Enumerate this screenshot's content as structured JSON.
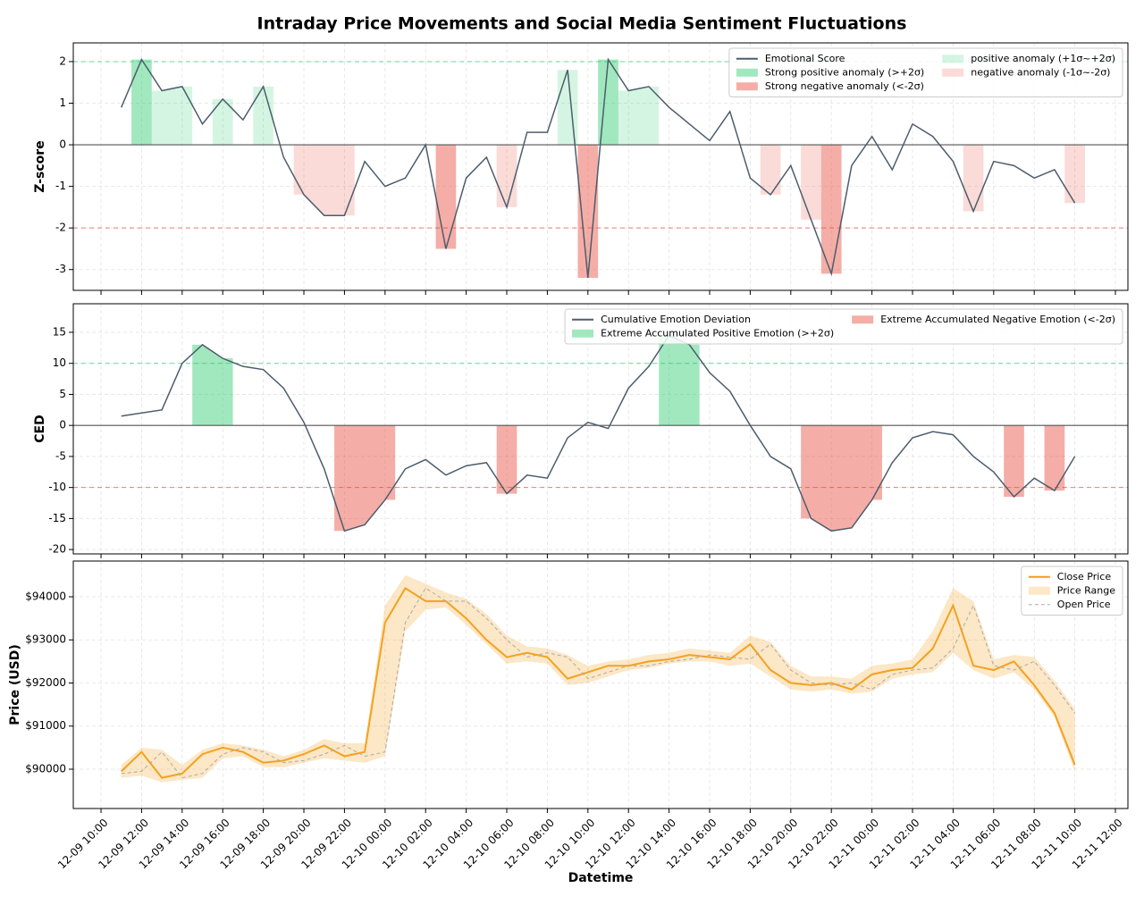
{
  "title": "Intraday Price Movements and Social Media Sentiment Fluctuations",
  "xlabel": "Datetime",
  "xlim": [
    "12-09 08:38",
    "12-11 12:37"
  ],
  "xticks": [
    "12-09 10:00",
    "12-09 12:00",
    "12-09 14:00",
    "12-09 16:00",
    "12-09 18:00",
    "12-09 20:00",
    "12-09 22:00",
    "12-10 00:00",
    "12-10 02:00",
    "12-10 04:00",
    "12-10 06:00",
    "12-10 08:00",
    "12-10 10:00",
    "12-10 12:00",
    "12-10 14:00",
    "12-10 16:00",
    "12-10 18:00",
    "12-10 20:00",
    "12-10 22:00",
    "12-11 00:00",
    "12-11 02:00",
    "12-11 04:00",
    "12-11 06:00",
    "12-11 08:00",
    "12-11 10:00",
    "12-11 12:00"
  ],
  "x": [
    "12-09 11:00",
    "12-09 12:00",
    "12-09 13:00",
    "12-09 14:00",
    "12-09 15:00",
    "12-09 16:00",
    "12-09 17:00",
    "12-09 18:00",
    "12-09 19:00",
    "12-09 20:00",
    "12-09 21:00",
    "12-09 22:00",
    "12-09 23:00",
    "12-10 00:00",
    "12-10 01:00",
    "12-10 02:00",
    "12-10 03:00",
    "12-10 04:00",
    "12-10 05:00",
    "12-10 06:00",
    "12-10 07:00",
    "12-10 08:00",
    "12-10 09:00",
    "12-10 10:00",
    "12-10 11:00",
    "12-10 12:00",
    "12-10 13:00",
    "12-10 14:00",
    "12-10 15:00",
    "12-10 16:00",
    "12-10 17:00",
    "12-10 18:00",
    "12-10 19:00",
    "12-10 20:00",
    "12-10 21:00",
    "12-10 22:00",
    "12-10 23:00",
    "12-11 00:00",
    "12-11 01:00",
    "12-11 02:00",
    "12-11 03:00",
    "12-11 04:00",
    "12-11 05:00",
    "12-11 06:00",
    "12-11 07:00",
    "12-11 08:00",
    "12-11 09:00",
    "12-11 10:00"
  ],
  "chart_data": [
    {
      "type": "line",
      "ylabel": "Z-score",
      "ylim": [
        -3.5,
        2.45
      ],
      "yticks": [
        -3,
        -2,
        -1,
        0,
        1,
        2
      ],
      "grid": true,
      "legend": "upper right",
      "legend_cols": 2,
      "series": [
        {
          "name": "Emotional Score",
          "color": "#4d5d6d",
          "values": [
            0.9,
            2.05,
            1.3,
            1.4,
            0.5,
            1.1,
            0.6,
            1.4,
            -0.3,
            -1.2,
            -1.7,
            -1.7,
            -0.4,
            -1.0,
            -0.8,
            0.0,
            -2.5,
            -0.8,
            -0.3,
            -1.5,
            0.3,
            0.3,
            1.8,
            -3.2,
            2.05,
            1.3,
            1.4,
            0.9,
            0.5,
            0.1,
            0.8,
            -0.8,
            -1.2,
            -0.5,
            -1.8,
            -3.1,
            -0.5,
            0.2,
            -0.6,
            0.5,
            0.2,
            -0.4,
            -1.6,
            -0.4,
            -0.5,
            -0.8,
            -0.6,
            -1.4
          ]
        }
      ],
      "fills": [
        {
          "name": "Strong positive anomaly (>+2σ)",
          "color": "#2ecc71",
          "opacity": 0.45,
          "above": 2
        },
        {
          "name": "Strong negative anomaly (<-2σ)",
          "color": "#e74c3c",
          "opacity": 0.45,
          "below": -2
        },
        {
          "name": "positive anomaly (+1σ~+2σ)",
          "color": "#2ecc71",
          "opacity": 0.2,
          "above": 1,
          "below": 2
        },
        {
          "name": "negative anomaly (-1σ~-2σ)",
          "color": "#e74c3c",
          "opacity": 0.2,
          "below": -1,
          "above": -2
        }
      ],
      "ref_lines": [
        {
          "value": 2,
          "color": "#2ecc71"
        },
        {
          "value": -2,
          "color": "#e74c3c"
        }
      ]
    },
    {
      "type": "line",
      "ylabel": "CED",
      "ylim": [
        -20.7,
        19.6
      ],
      "yticks": [
        -20,
        -15,
        -10,
        -5,
        0,
        5,
        10,
        15
      ],
      "grid": true,
      "legend": "upper right",
      "legend_cols": 2,
      "series": [
        {
          "name": "Cumulative Emotion Deviation",
          "color": "#4d5d6d",
          "values": [
            1.5,
            2,
            2.5,
            10,
            13,
            10.8,
            9.5,
            9,
            6,
            0.5,
            -7,
            -17,
            -16,
            -12,
            -7,
            -5.5,
            -8,
            -6.5,
            -6,
            -11,
            -8,
            -8.5,
            -2,
            0.5,
            -0.5,
            6,
            9.5,
            14.5,
            13,
            8.5,
            5.5,
            0,
            -5,
            -7,
            -15,
            -17,
            -16.5,
            -12,
            -6,
            -2,
            -1,
            -1.5,
            -5,
            -7.5,
            -11.5,
            -8.5,
            -10.5,
            -5
          ]
        }
      ],
      "fills": [
        {
          "name": "Extreme Accumulated Positive Emotion (>+2σ)",
          "color": "#2ecc71",
          "opacity": 0.45,
          "above": 10
        },
        {
          "name": "Extreme Accumulated Negative Emotion (<-2σ)",
          "color": "#e74c3c",
          "opacity": 0.45,
          "below": -10
        }
      ],
      "ref_lines": [
        {
          "value": 10,
          "color": "#2ecc71"
        },
        {
          "value": -10,
          "color": "#e74c3c"
        }
      ]
    },
    {
      "type": "line",
      "ylabel": "Price (USD)",
      "ylim": [
        89088,
        94829
      ],
      "yticks": [
        {
          "value": 90000,
          "label": "$90000"
        },
        {
          "value": 91000,
          "label": "$91000"
        },
        {
          "value": 92000,
          "label": "$92000"
        },
        {
          "value": 93000,
          "label": "$93000"
        },
        {
          "value": 94000,
          "label": "$94000"
        }
      ],
      "grid": true,
      "legend": "upper right",
      "legend_cols": 1,
      "series": [
        {
          "name": "Close Price",
          "color": "#f39c12",
          "values": [
            89950,
            90400,
            89800,
            89900,
            90350,
            90500,
            90400,
            90150,
            90200,
            90350,
            90550,
            90300,
            90400,
            93400,
            94200,
            93900,
            93900,
            93500,
            93000,
            92600,
            92700,
            92600,
            92100,
            92250,
            92400,
            92400,
            92500,
            92550,
            92650,
            92600,
            92550,
            92900,
            92300,
            92000,
            91950,
            92000,
            91850,
            92200,
            92300,
            92350,
            92800,
            93800,
            92400,
            92300,
            92500,
            91950,
            91300,
            90100
          ]
        },
        {
          "name": "Price Range",
          "kind": "band",
          "color": "#f5b041",
          "opacity": 0.3,
          "high": [
            90100,
            90500,
            90450,
            90100,
            90450,
            90600,
            90550,
            90450,
            90300,
            90450,
            90700,
            90600,
            90600,
            93800,
            94500,
            94300,
            94100,
            93950,
            93600,
            93100,
            92850,
            92800,
            92650,
            92400,
            92500,
            92550,
            92650,
            92700,
            92800,
            92750,
            92700,
            93100,
            92950,
            92400,
            92150,
            92150,
            92100,
            92400,
            92450,
            92550,
            93200,
            94200,
            93900,
            92550,
            92650,
            92600,
            92050,
            91400
          ],
          "low": [
            89800,
            89850,
            89700,
            89750,
            89800,
            90250,
            90300,
            90050,
            90050,
            90150,
            90250,
            90200,
            90150,
            90300,
            93200,
            93700,
            93750,
            93350,
            92900,
            92450,
            92500,
            92450,
            91950,
            92000,
            92150,
            92300,
            92350,
            92450,
            92500,
            92500,
            92400,
            92450,
            92150,
            91850,
            91800,
            91850,
            91750,
            91800,
            92100,
            92200,
            92250,
            92700,
            92300,
            92100,
            92250,
            91850,
            91200,
            89950
          ]
        },
        {
          "name": "Open Price",
          "color": "#aaaaaa",
          "dash": true,
          "values": [
            89900,
            89950,
            90400,
            89800,
            89900,
            90350,
            90500,
            90400,
            90150,
            90200,
            90350,
            90550,
            90300,
            90400,
            93400,
            94200,
            93900,
            93900,
            93500,
            93000,
            92600,
            92700,
            92600,
            92100,
            92250,
            92400,
            92400,
            92500,
            92550,
            92650,
            92600,
            92550,
            92900,
            92300,
            92000,
            91950,
            92000,
            91850,
            92200,
            92300,
            92350,
            92800,
            93800,
            92400,
            92300,
            92500,
            91950,
            91300
          ]
        }
      ]
    }
  ]
}
